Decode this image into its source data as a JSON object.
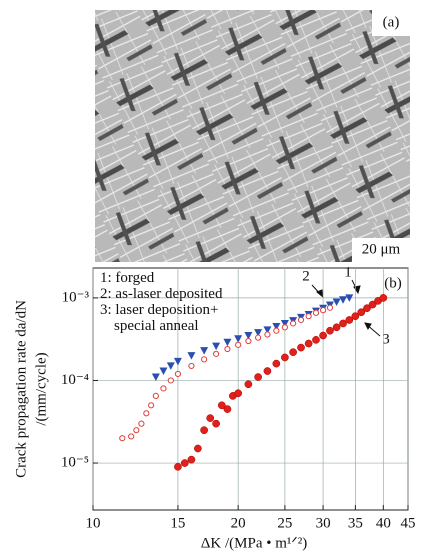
{
  "panel_a": {
    "label": "(a)",
    "scale_bar": "20 μm"
  },
  "chart_data": {
    "type": "scatter",
    "panel_label": "(b)",
    "y_label": [
      "Crack propagation rate da/dN",
      "/(mm/cycle)"
    ],
    "x_label": "ΔK /(MPa • m¹ᐟ²)",
    "xscale": "log",
    "yscale": "log",
    "grid": true,
    "xlim": [
      10,
      45
    ],
    "xticks": [
      10,
      15,
      20,
      25,
      30,
      35,
      40,
      45
    ],
    "ylim": [
      2.7e-06,
      0.0023
    ],
    "yticks": [
      {
        "value": 1e-05,
        "label": "10⁻⁵"
      },
      {
        "value": 0.0001,
        "label": "10⁻⁴"
      },
      {
        "value": 0.001,
        "label": "10⁻³"
      }
    ],
    "annotations": [
      "1",
      "2",
      "3"
    ],
    "series": [
      {
        "name": "1: forged",
        "color": "#2a4fb0",
        "marker": "triangle-down",
        "x": [
          13.5,
          14,
          14.5,
          15,
          16,
          17,
          18,
          19,
          20,
          21,
          22,
          23,
          24,
          25,
          26,
          27,
          28,
          29,
          30,
          31,
          32,
          33,
          34
        ],
        "values": [
          0.00011,
          0.00013,
          0.00015,
          0.00017,
          0.0002,
          0.00023,
          0.00026,
          0.00029,
          0.00032,
          0.00035,
          0.00038,
          0.00041,
          0.00045,
          0.00049,
          0.00053,
          0.00058,
          0.00063,
          0.00069,
          0.00075,
          0.00082,
          0.00089,
          0.00095,
          0.001
        ]
      },
      {
        "name": "2: as-laser deposited",
        "color": "#e0403a",
        "marker": "open-circle",
        "x": [
          11.5,
          12,
          12.3,
          12.6,
          12.9,
          13.2,
          13.5,
          14,
          14.5,
          15,
          16,
          17,
          18,
          19,
          20,
          21,
          22,
          23,
          24,
          25,
          26,
          27,
          28,
          29,
          30,
          31
        ],
        "values": [
          2e-05,
          2.1e-05,
          2.5e-05,
          3e-05,
          4e-05,
          5e-05,
          6.5e-05,
          8e-05,
          0.0001,
          0.00012,
          0.00015,
          0.00018,
          0.00021,
          0.00024,
          0.00027,
          0.0003,
          0.00033,
          0.00036,
          0.0004,
          0.00044,
          0.00049,
          0.00054,
          0.0006,
          0.00066,
          0.00071,
          0.00076
        ]
      },
      {
        "name": "3: laser deposition+ special anneal",
        "color": "#e0201a",
        "marker": "filled-circle",
        "x": [
          15,
          15.5,
          16,
          16.5,
          17,
          17.5,
          18,
          18.5,
          19,
          19.5,
          20,
          21,
          22,
          23,
          24,
          25,
          26,
          27,
          28,
          29,
          30,
          31,
          32,
          33,
          34,
          35,
          36,
          37,
          38,
          39,
          40
        ],
        "values": [
          9e-06,
          1e-05,
          1.1e-05,
          1.5e-05,
          2.5e-05,
          3.5e-05,
          3e-05,
          5e-05,
          4.5e-05,
          6.5e-05,
          7e-05,
          9e-05,
          0.00011,
          0.00013,
          0.00016,
          0.00019,
          0.00022,
          0.00025,
          0.00028,
          0.00031,
          0.00035,
          0.0004,
          0.00044,
          0.00049,
          0.00054,
          0.0006,
          0.00067,
          0.00075,
          0.00083,
          0.00092,
          0.001
        ]
      }
    ]
  }
}
